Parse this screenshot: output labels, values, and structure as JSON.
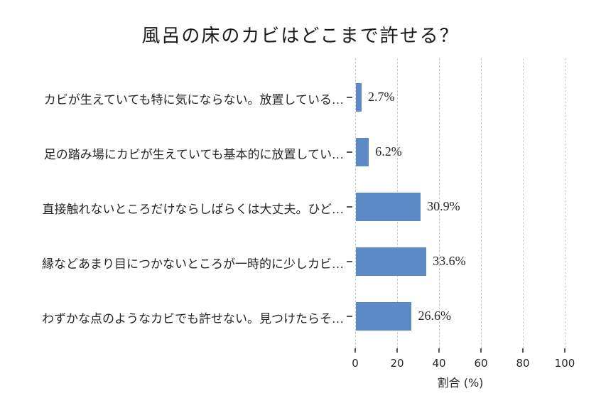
{
  "title": "風呂の床のカビはどこまで許せる？",
  "colors": {
    "bar": "#5b8ac6",
    "grid": "#cbcbcb",
    "text": "#262626"
  },
  "chart_data": {
    "type": "bar",
    "orientation": "horizontal",
    "title": "風呂の床のカビはどこまで許せる？",
    "categories": [
      "カビが生えていても特に気にならない。放置している…",
      "足の踏み場にカビが生えていても基本的に放置してい…",
      "直接触れないところだけならしばらくは大丈夫。ひど…",
      "縁などあまり目につかないところが一時的に少しカビ…",
      "わずかな点のようなカビでも許せない。見つけたらそ…"
    ],
    "values": [
      2.7,
      6.2,
      30.9,
      33.6,
      26.6
    ],
    "value_labels": [
      "2.7%",
      "6.2%",
      "30.9%",
      "33.6%",
      "26.6%"
    ],
    "xlabel": "割合 (%)",
    "xlim": [
      0,
      100
    ],
    "xticks": [
      0,
      20,
      40,
      60,
      80,
      100
    ],
    "grid": "vertical-dashed",
    "legend": "none"
  }
}
